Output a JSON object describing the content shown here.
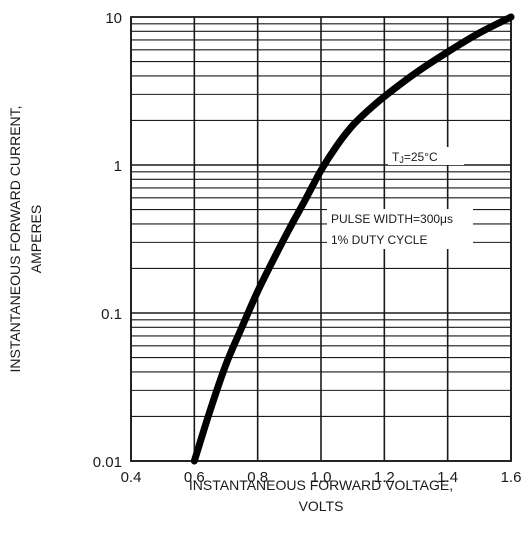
{
  "chart_data": {
    "type": "line",
    "xlabel": [
      "INSTANTANEOUS FORWARD VOLTAGE,",
      "VOLTS"
    ],
    "ylabel": [
      "INSTANTANEOUS FORWARD CURRENT,",
      "AMPERES"
    ],
    "x_ticks": [
      "0.4",
      "0.6",
      "0.8",
      "1.0",
      "1.2",
      "1.4",
      "1.6"
    ],
    "y_ticks": [
      "0.01",
      "0.1",
      "1",
      "10"
    ],
    "xlim": [
      0.4,
      1.6
    ],
    "ylim": [
      0.01,
      10
    ],
    "y_scale": "log",
    "grid": true,
    "annotations": [
      "T₂=25°C",
      "PULSE WIDTH=300μs",
      "1% DUTY CYCLE"
    ],
    "series": [
      {
        "x": [
          0.6,
          0.65,
          0.7,
          0.75,
          0.8,
          0.85,
          0.9,
          0.95,
          1.0,
          1.05,
          1.1,
          1.15,
          1.2,
          1.3,
          1.4,
          1.5,
          1.6
        ],
        "y": [
          0.01,
          0.022,
          0.045,
          0.08,
          0.14,
          0.23,
          0.37,
          0.58,
          0.92,
          1.35,
          1.85,
          2.35,
          2.9,
          4.2,
          5.8,
          7.8,
          10
        ]
      }
    ],
    "colors": {
      "curve": "#000000",
      "grid": "#1a1a1a"
    }
  }
}
